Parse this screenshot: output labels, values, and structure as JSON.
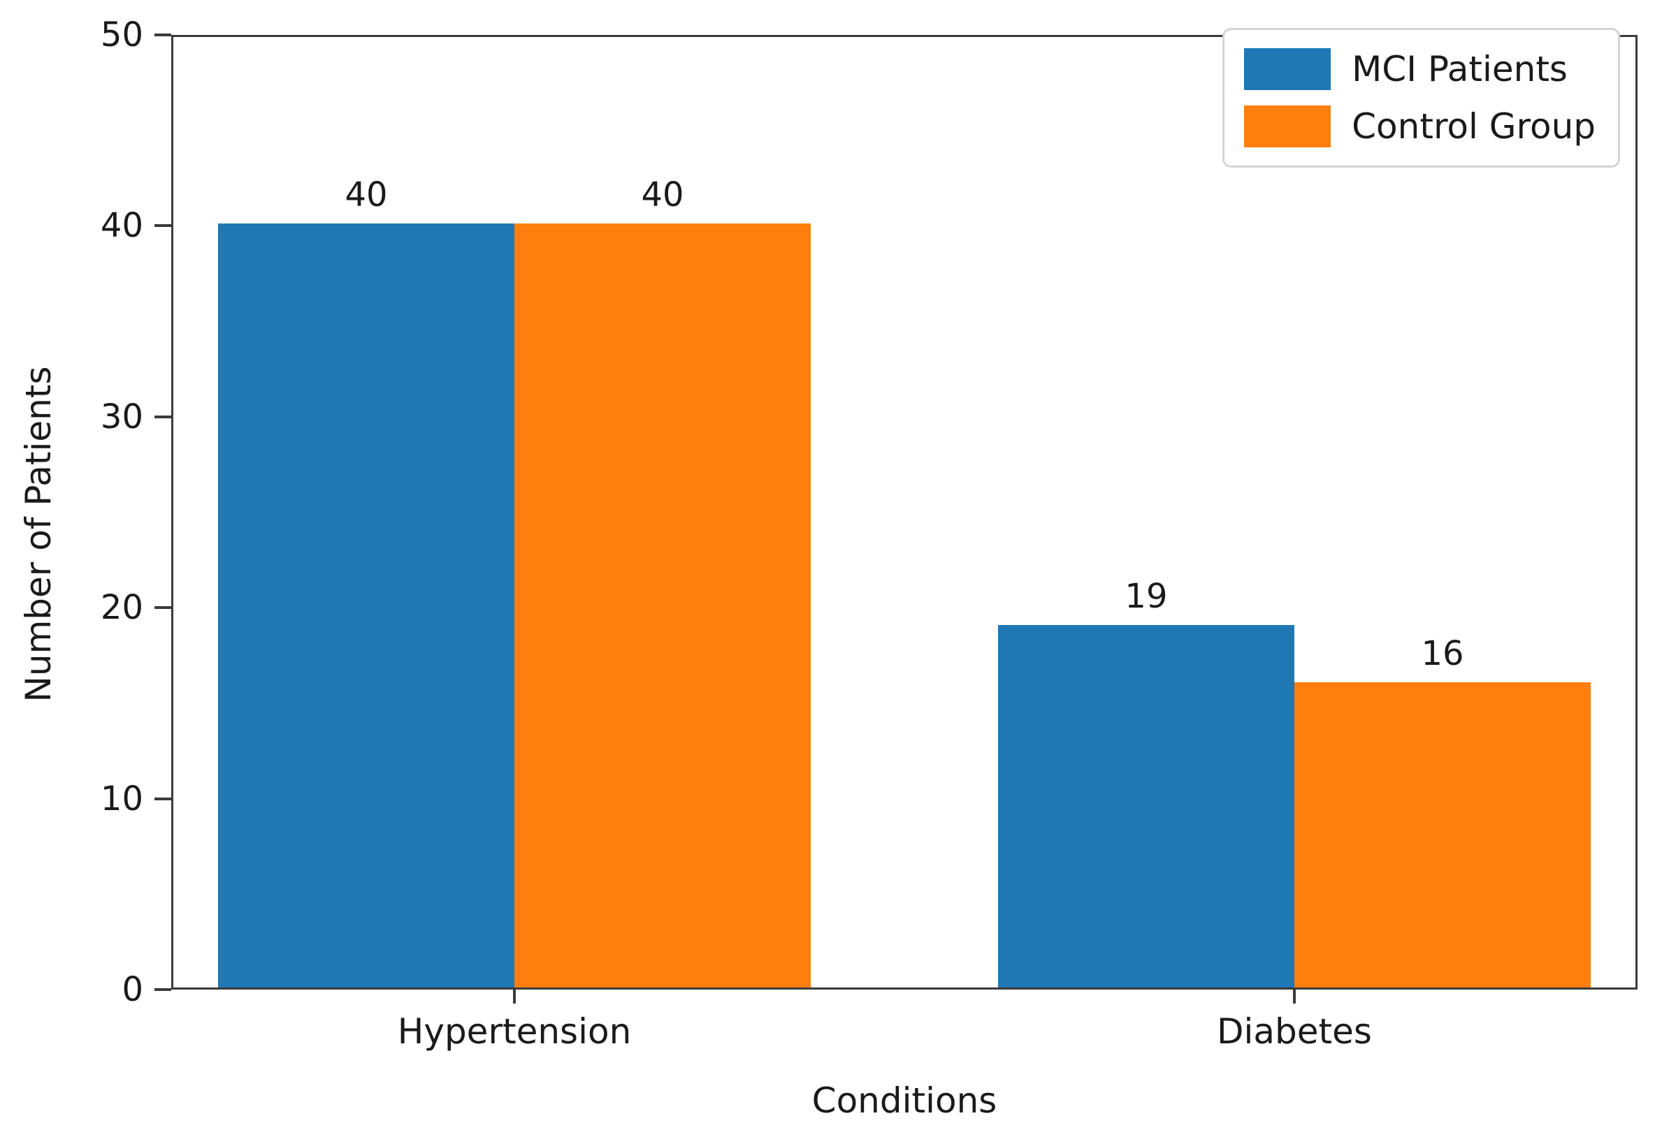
{
  "chart_data": {
    "type": "bar",
    "title": "",
    "xlabel": "Conditions",
    "ylabel": "Number of Patients",
    "categories": [
      "Hypertension",
      "Diabetes"
    ],
    "series": [
      {
        "name": "MCI Patients",
        "color": "#1f77b4",
        "values": [
          40,
          19
        ]
      },
      {
        "name": "Control Group",
        "color": "#ff7f0e",
        "values": [
          40,
          16
        ]
      }
    ],
    "bar_value_labels": [
      [
        "40",
        "19"
      ],
      [
        "40",
        "16"
      ]
    ],
    "ylim": [
      0,
      50
    ],
    "yticks": [
      0,
      10,
      20,
      30,
      40,
      50
    ],
    "ytick_labels": [
      "0",
      "10",
      "20",
      "30",
      "40",
      "50"
    ],
    "grid": false,
    "legend_position": "upper right"
  },
  "colors": {
    "mci_series": "#1f77b4",
    "control_series": "#ff7f0e",
    "axis": "#3a3a3a",
    "text": "#1a1a1a",
    "legend_border": "#d5d5d5",
    "background": "#ffffff"
  }
}
